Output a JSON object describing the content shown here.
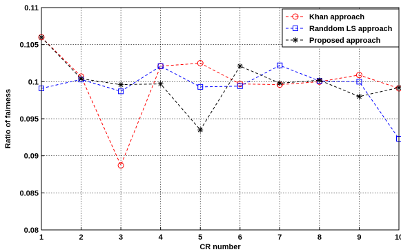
{
  "chart_data": {
    "type": "line",
    "title": "",
    "xlabel": "CR number",
    "ylabel": "Ratio of fairness",
    "x": [
      1,
      2,
      3,
      4,
      5,
      6,
      7,
      8,
      9,
      10
    ],
    "xlim": [
      1,
      10
    ],
    "ylim": [
      0.08,
      0.11
    ],
    "xticks": [
      "1",
      "2",
      "3",
      "4",
      "5",
      "6",
      "7",
      "8",
      "9",
      "10"
    ],
    "yticks": [
      "0.08",
      "0.085",
      "0.09",
      "0.095",
      "0.1",
      "0.105",
      "0.11"
    ],
    "yticks_values": [
      0.08,
      0.085,
      0.09,
      0.095,
      0.1,
      0.105,
      0.11
    ],
    "grid": true,
    "legend_position": "top-right",
    "series": [
      {
        "name": "Khan approach",
        "color": "#ff0000",
        "marker": "circle",
        "line": "dashed",
        "values": [
          0.106,
          0.1007,
          0.0887,
          0.1021,
          0.1025,
          0.0997,
          0.0996,
          0.1,
          0.1009,
          0.0991
        ]
      },
      {
        "name": "Randdom LS approach",
        "color": "#0000ff",
        "marker": "square",
        "line": "dashed",
        "values": [
          0.0991,
          0.1003,
          0.0987,
          0.1021,
          0.0993,
          0.0994,
          0.1022,
          0.1001,
          0.1,
          0.0923
        ]
      },
      {
        "name": "Proposed approach",
        "color": "#000000",
        "marker": "star",
        "line": "dashed",
        "values": [
          0.106,
          0.1004,
          0.0996,
          0.0997,
          0.0935,
          0.1021,
          0.0998,
          0.1002,
          0.098,
          0.0992
        ]
      }
    ]
  }
}
